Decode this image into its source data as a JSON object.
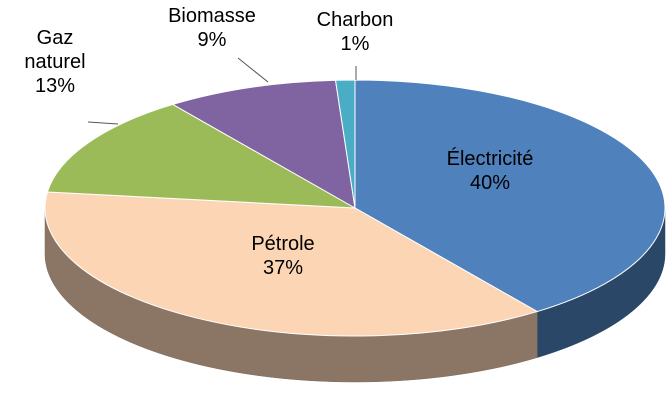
{
  "chart_data": {
    "type": "pie3d",
    "categories": [
      "Électricité",
      "Pétrole",
      "Gaz naturel",
      "Biomasse",
      "Charbon"
    ],
    "values": [
      40,
      37,
      13,
      9,
      1
    ],
    "value_labels": [
      "40%",
      "37%",
      "13%",
      "9%",
      "1%"
    ],
    "colors": [
      "#4f81bd",
      "#fcd5b5",
      "#9bbb59",
      "#8064a2",
      "#4bacc6"
    ]
  }
}
